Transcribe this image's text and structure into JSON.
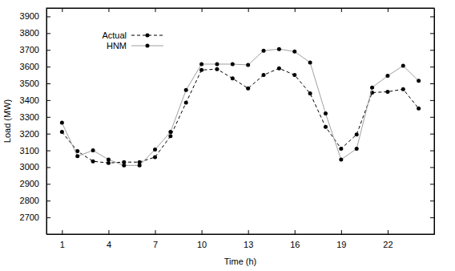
{
  "chart_data": {
    "type": "line",
    "x_label": "Time (h)",
    "y_label": "Load (MW)",
    "x": [
      1,
      2,
      3,
      4,
      5,
      6,
      7,
      8,
      9,
      10,
      11,
      12,
      13,
      14,
      15,
      16,
      17,
      18,
      19,
      20,
      21,
      22,
      23,
      24
    ],
    "series": [
      {
        "name": "Actual",
        "color": "#000000",
        "marker": "circle",
        "line_style": "dashed",
        "values": [
          3210,
          3095,
          3035,
          3025,
          3030,
          3030,
          3060,
          3185,
          3385,
          3580,
          3585,
          3530,
          3470,
          3550,
          3590,
          3550,
          3440,
          3240,
          3110,
          3195,
          3445,
          3450,
          3465,
          3350
        ]
      },
      {
        "name": "HNM",
        "color": "#a0a0a0",
        "marker": "circle",
        "line_style": "solid",
        "values": [
          3265,
          3065,
          3100,
          3045,
          3010,
          3010,
          3105,
          3210,
          3460,
          3615,
          3615,
          3615,
          3610,
          3695,
          3705,
          3690,
          3625,
          3320,
          3045,
          3110,
          3475,
          3545,
          3605,
          3515
        ]
      }
    ],
    "xlim": [
      0,
      25
    ],
    "xticks": [
      1,
      4,
      7,
      10,
      13,
      16,
      19,
      22
    ],
    "ylim": [
      2600,
      3950
    ],
    "yticks": [
      2700,
      2800,
      2900,
      3000,
      3100,
      3200,
      3300,
      3400,
      3500,
      3600,
      3700,
      3800,
      3900
    ],
    "grid": false,
    "legend": "top-left"
  }
}
